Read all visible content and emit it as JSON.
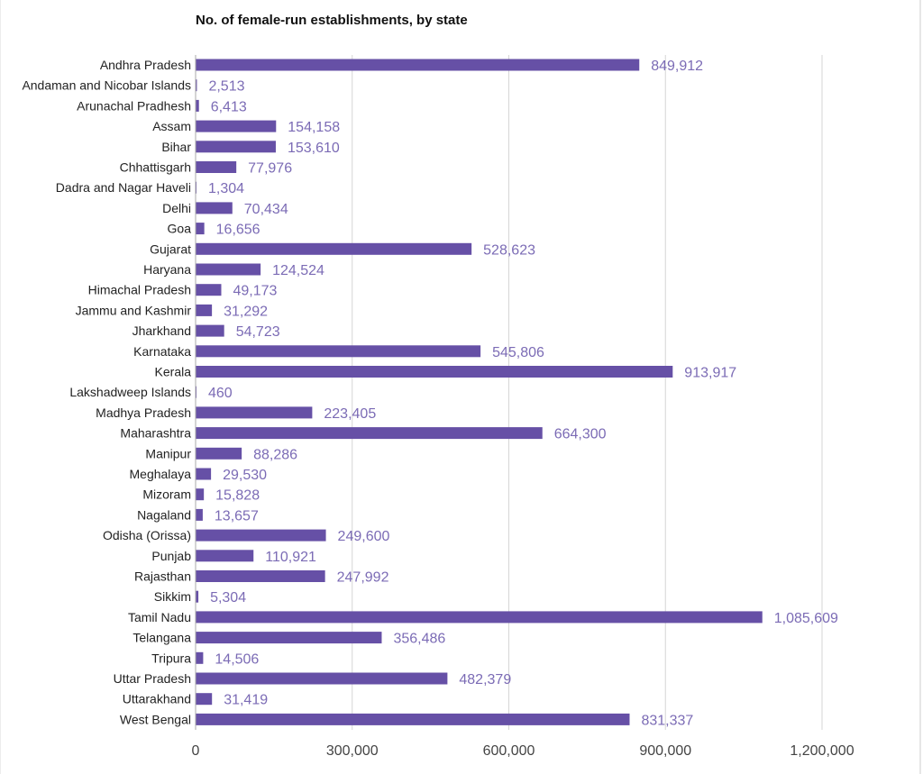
{
  "colors": {
    "bar": "#6650a6",
    "value_label": "#7b6bb5",
    "grid": "#d6d6d6",
    "axis": "#aaaaaa"
  },
  "chart_data": {
    "type": "bar",
    "orientation": "horizontal",
    "title": "No. of female-run establishments, by state",
    "xlabel": "",
    "ylabel": "",
    "xlim": [
      0,
      1200000
    ],
    "x_ticks": [
      0,
      300000,
      600000,
      900000,
      1200000
    ],
    "x_tick_labels": [
      "0",
      "300,000",
      "600,000",
      "900,000",
      "1,200,000"
    ],
    "grid": true,
    "categories": [
      "Andhra Pradesh",
      "Andaman and Nicobar Islands",
      "Arunachal Pradhesh",
      "Assam",
      "Bihar",
      "Chhattisgarh",
      "Dadra and Nagar Haveli",
      "Delhi",
      "Goa",
      "Gujarat",
      "Haryana",
      "Himachal Pradesh",
      "Jammu and Kashmir",
      "Jharkhand",
      "Karnataka",
      "Kerala",
      "Lakshadweep Islands",
      "Madhya Pradesh",
      "Maharashtra",
      "Manipur",
      "Meghalaya",
      "Mizoram",
      "Nagaland",
      "Odisha (Orissa)",
      "Punjab",
      "Rajasthan",
      "Sikkim",
      "Tamil Nadu",
      "Telangana",
      "Tripura",
      "Uttar Pradesh",
      "Uttarakhand",
      "West Bengal"
    ],
    "values": [
      849912,
      2513,
      6413,
      154158,
      153610,
      77976,
      1304,
      70434,
      16656,
      528623,
      124524,
      49173,
      31292,
      54723,
      545806,
      913917,
      460,
      223405,
      664300,
      88286,
      29530,
      15828,
      13657,
      249600,
      110921,
      247992,
      5304,
      1085609,
      356486,
      14506,
      482379,
      31419,
      831337
    ],
    "value_labels": [
      "849,912",
      "2,513",
      "6,413",
      "154,158",
      "153,610",
      "77,976",
      "1,304",
      "70,434",
      "16,656",
      "528,623",
      "124,524",
      "49,173",
      "31,292",
      "54,723",
      "545,806",
      "913,917",
      "460",
      "223,405",
      "664,300",
      "88,286",
      "29,530",
      "15,828",
      "13,657",
      "249,600",
      "110,921",
      "247,992",
      "5,304",
      "1,085,609",
      "356,486",
      "14,506",
      "482,379",
      "31,419",
      "831,337"
    ]
  }
}
